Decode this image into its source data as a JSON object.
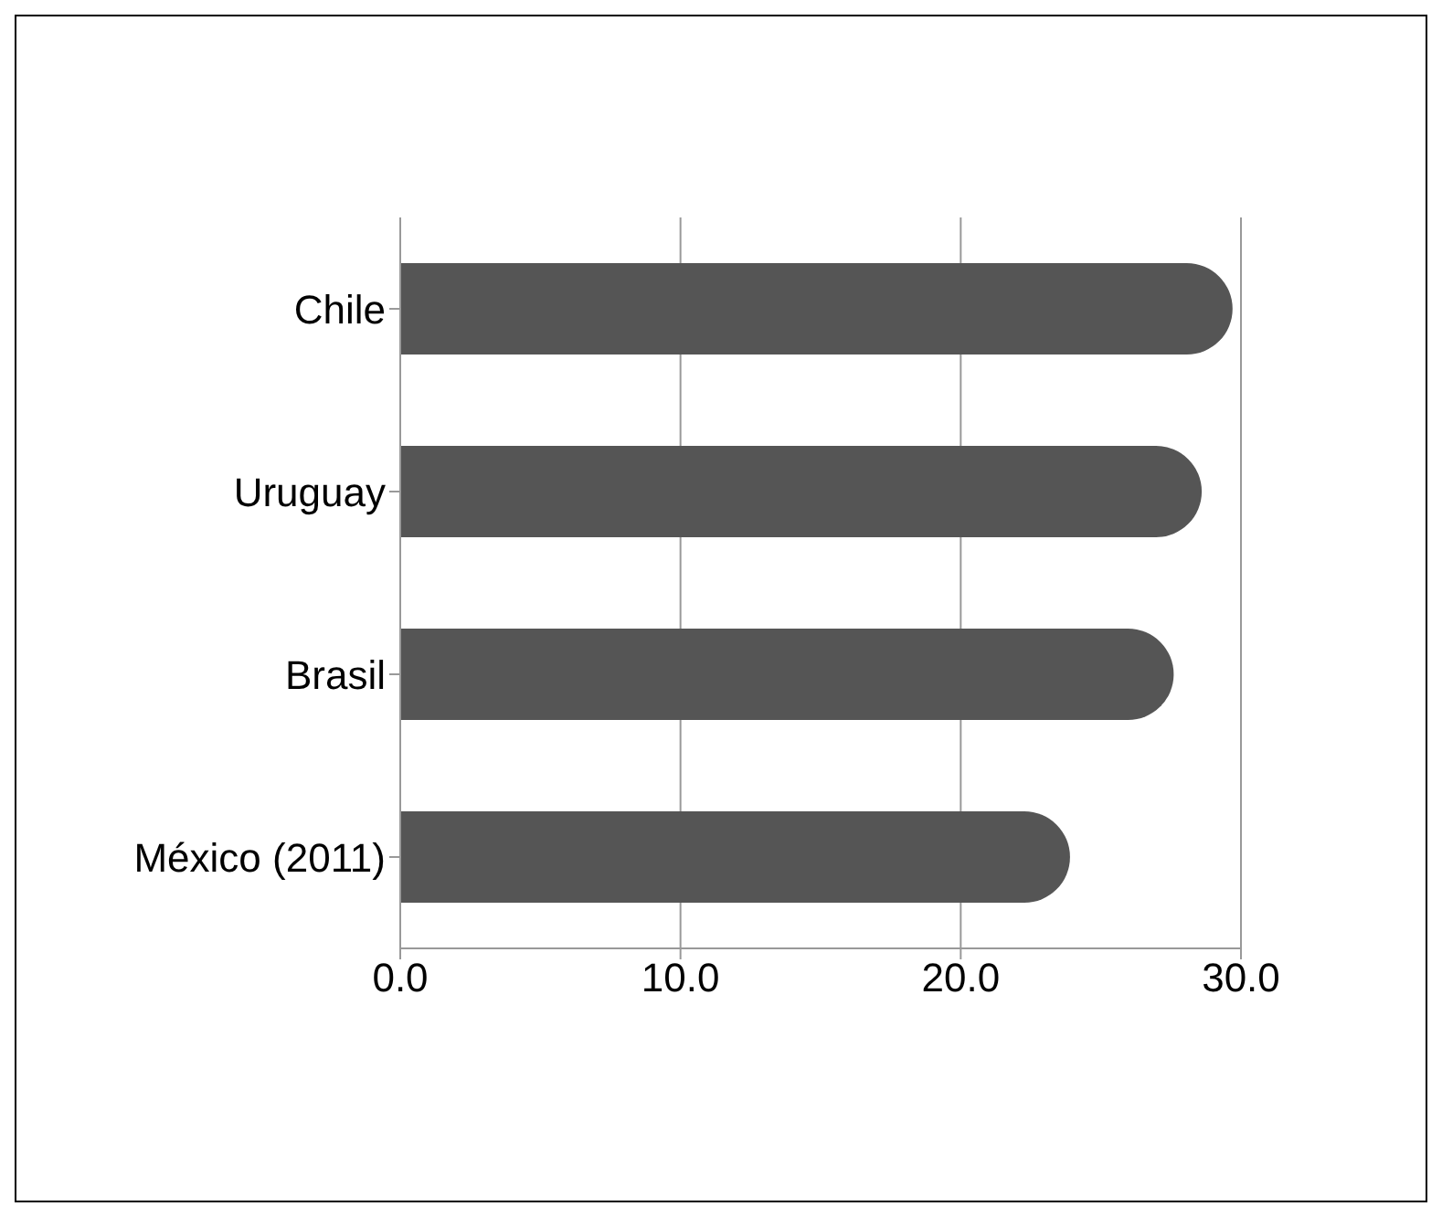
{
  "chart_data": {
    "type": "bar",
    "orientation": "horizontal",
    "categories": [
      "Chile",
      "Uruguay",
      "Brasil",
      "México (2011)"
    ],
    "values": [
      29.7,
      28.6,
      27.6,
      23.9
    ],
    "color": "#555555",
    "xlim": [
      0,
      30
    ],
    "xticks": [
      {
        "value": 0,
        "label": "0.0"
      },
      {
        "value": 10,
        "label": "10.0"
      },
      {
        "value": 20,
        "label": "20.0"
      },
      {
        "value": 30,
        "label": "30.0"
      }
    ],
    "grid": "x"
  }
}
